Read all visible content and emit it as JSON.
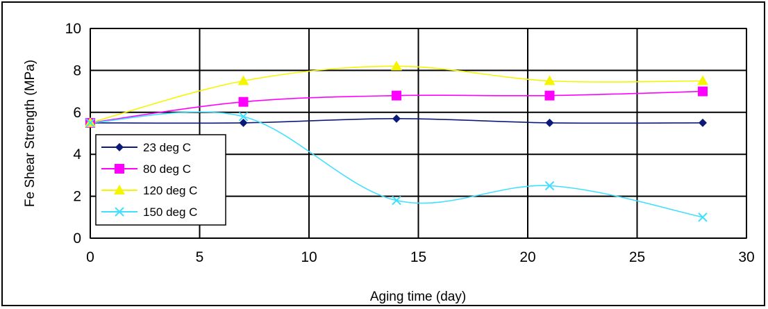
{
  "chart_data": {
    "type": "line",
    "title": "",
    "xlabel": "Aging time (day)",
    "ylabel": "Fe Shear Strength (MPa)",
    "xlim": [
      0,
      30
    ],
    "ylim": [
      0,
      10
    ],
    "x_ticks": [
      "0",
      "5",
      "10",
      "15",
      "20",
      "25",
      "30"
    ],
    "y_ticks": [
      "0",
      "2",
      "4",
      "6",
      "8",
      "10"
    ],
    "grid": true,
    "smooth": true,
    "legend_position": "left",
    "series": [
      {
        "name": "23 deg C",
        "color": "#0b1a78",
        "marker": "diamond",
        "x": [
          0,
          7,
          14,
          21,
          28
        ],
        "y": [
          5.5,
          5.5,
          5.7,
          5.5,
          5.5
        ]
      },
      {
        "name": "80 deg C",
        "color": "#ff00ff",
        "marker": "square",
        "x": [
          0,
          7,
          14,
          21,
          28
        ],
        "y": [
          5.5,
          6.5,
          6.8,
          6.8,
          7.0
        ]
      },
      {
        "name": "120 deg C",
        "color": "#f5f500",
        "marker": "triangle",
        "x": [
          0,
          7,
          14,
          21,
          28
        ],
        "y": [
          5.5,
          7.5,
          8.2,
          7.5,
          7.5
        ]
      },
      {
        "name": "150 deg C",
        "color": "#3fe0ff",
        "marker": "x",
        "x": [
          0,
          7,
          14,
          21,
          28
        ],
        "y": [
          5.5,
          5.8,
          1.8,
          2.5,
          1.0
        ]
      }
    ]
  }
}
